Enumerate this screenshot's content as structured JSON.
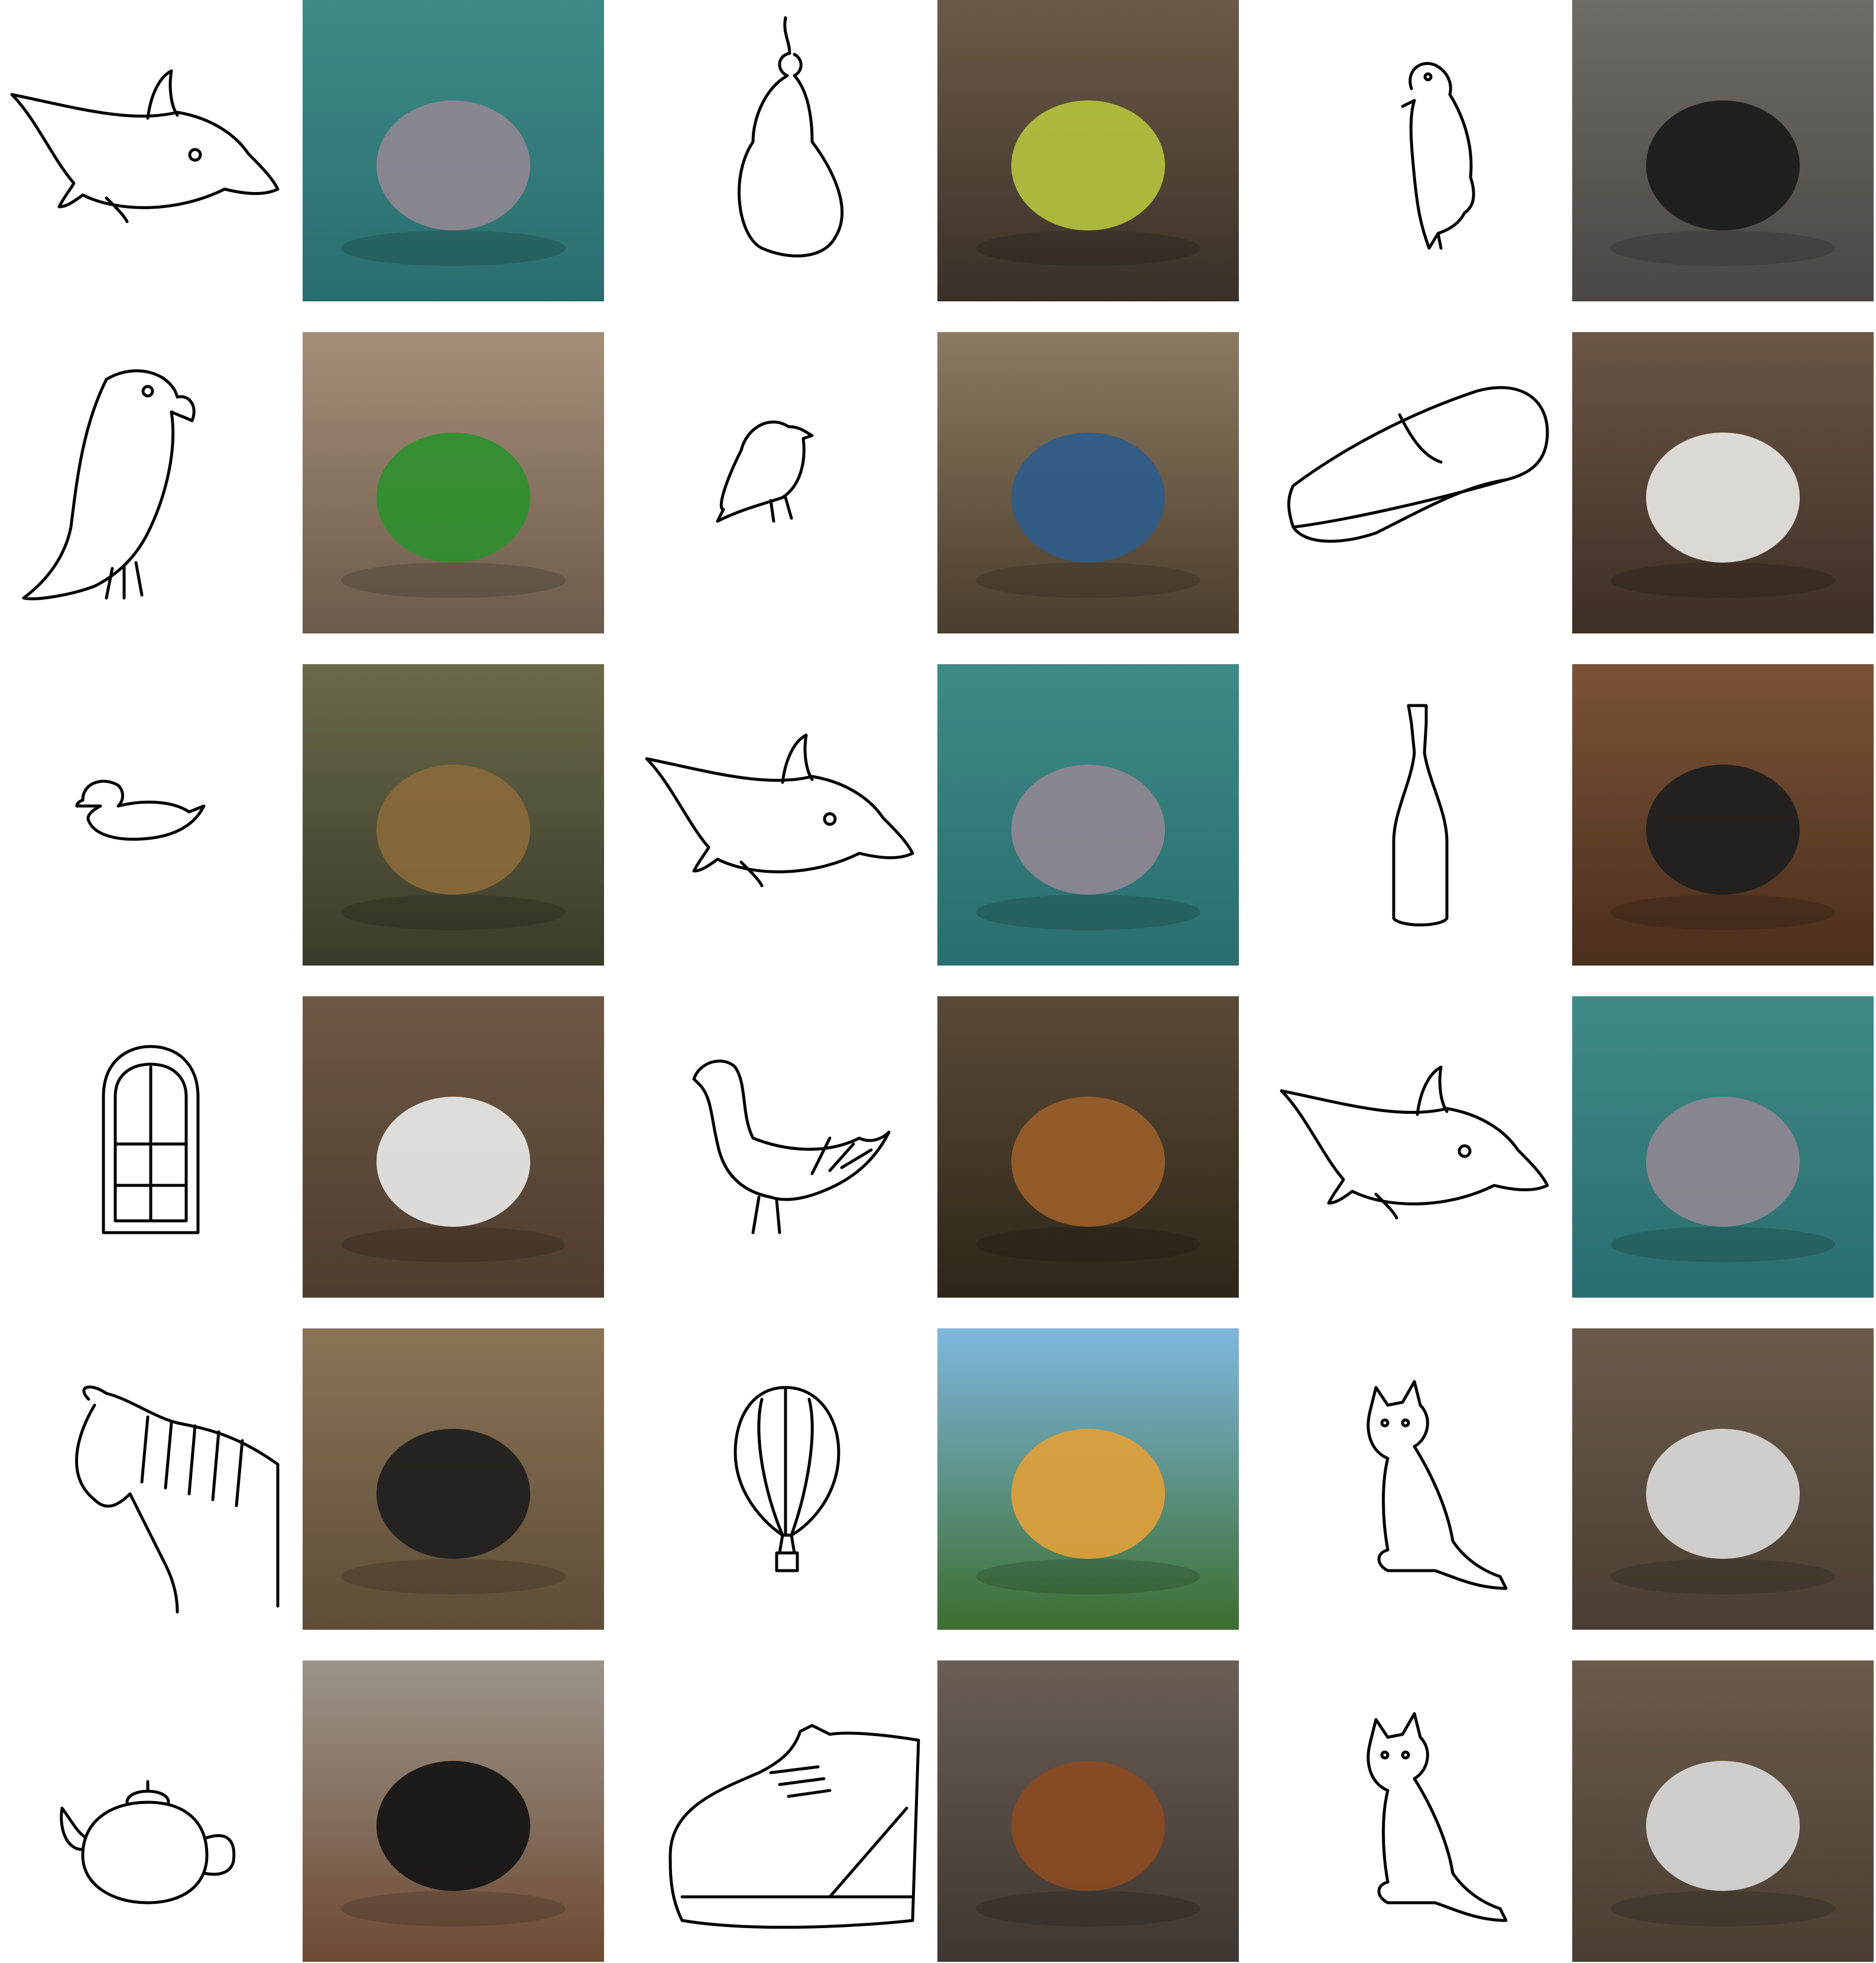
{
  "figure": {
    "columns_per_row": 6,
    "rows": [
      [
        {
          "kind": "sketch",
          "subject": "dolphin"
        },
        {
          "kind": "photo",
          "subject": "dolphin"
        },
        {
          "kind": "sketch",
          "subject": "pear"
        },
        {
          "kind": "photo",
          "subject": "pear"
        },
        {
          "kind": "sketch",
          "subject": "penguin"
        },
        {
          "kind": "photo",
          "subject": "penguin"
        }
      ],
      [
        {
          "kind": "sketch",
          "subject": "parrot"
        },
        {
          "kind": "photo",
          "subject": "parrot"
        },
        {
          "kind": "sketch",
          "subject": "songbird"
        },
        {
          "kind": "photo",
          "subject": "songbird"
        },
        {
          "kind": "sketch",
          "subject": "shoe"
        },
        {
          "kind": "photo",
          "subject": "shoe"
        }
      ],
      [
        {
          "kind": "sketch",
          "subject": "duck"
        },
        {
          "kind": "photo",
          "subject": "duck"
        },
        {
          "kind": "sketch",
          "subject": "dolphin"
        },
        {
          "kind": "photo",
          "subject": "dolphin"
        },
        {
          "kind": "sketch",
          "subject": "wine-bottle"
        },
        {
          "kind": "photo",
          "subject": "wine-bottle"
        }
      ],
      [
        {
          "kind": "sketch",
          "subject": "window"
        },
        {
          "kind": "photo",
          "subject": "window"
        },
        {
          "kind": "sketch",
          "subject": "chicken"
        },
        {
          "kind": "photo",
          "subject": "chicken"
        },
        {
          "kind": "sketch",
          "subject": "dolphin"
        },
        {
          "kind": "photo",
          "subject": "dolphin"
        }
      ],
      [
        {
          "kind": "sketch",
          "subject": "zebra"
        },
        {
          "kind": "photo",
          "subject": "zebra"
        },
        {
          "kind": "sketch",
          "subject": "hot-air-balloon"
        },
        {
          "kind": "photo",
          "subject": "hot-air-balloon"
        },
        {
          "kind": "sketch",
          "subject": "cat"
        },
        {
          "kind": "photo",
          "subject": "cat"
        }
      ],
      [
        {
          "kind": "sketch",
          "subject": "teapot"
        },
        {
          "kind": "photo",
          "subject": "teapot"
        },
        {
          "kind": "sketch",
          "subject": "boot"
        },
        {
          "kind": "photo",
          "subject": "boot"
        },
        {
          "kind": "sketch",
          "subject": "cat"
        },
        {
          "kind": "photo",
          "subject": "cat"
        }
      ]
    ]
  }
}
